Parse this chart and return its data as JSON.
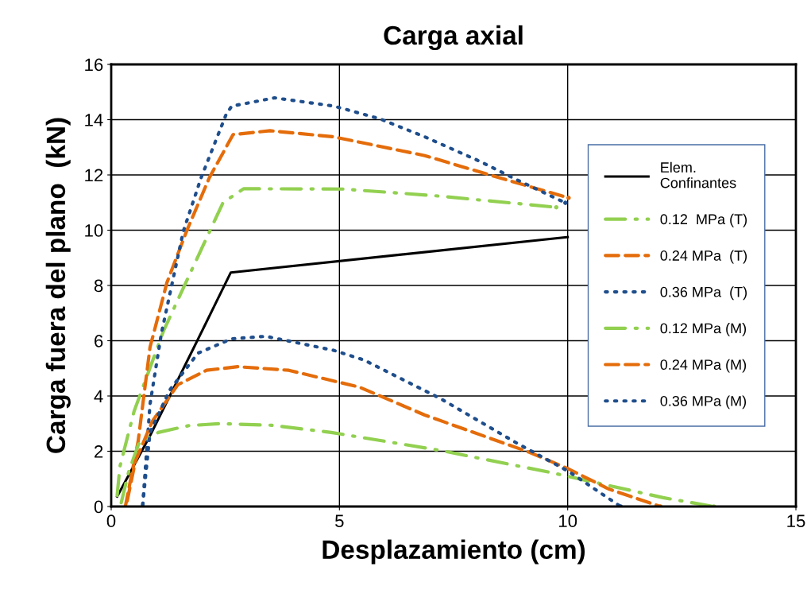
{
  "chart_data": {
    "type": "line",
    "title": "Carga axial",
    "xlabel": "Desplazamiento (cm)",
    "ylabel": "Carga fuera del plano  (kN)",
    "xlim": [
      0,
      15
    ],
    "xticks": [
      0,
      5,
      10,
      15
    ],
    "ylim": [
      0,
      16
    ],
    "yticks": [
      0,
      2,
      4,
      6,
      8,
      10,
      12,
      14,
      16
    ],
    "grid": true,
    "legend": "right",
    "marker": "none",
    "series": [
      {
        "name": "Elem.\nConfinantes",
        "color": "#000000",
        "line_style": "solid",
        "x": [
          0.13,
          0.85,
          1.84,
          2.62,
          10.0
        ],
        "values": [
          0.36,
          2.56,
          5.85,
          8.47,
          9.75
        ]
      },
      {
        "name": "0.12  MPa (T)",
        "color": "#92d050",
        "line_style": "dashdot",
        "x": [
          0.13,
          0.19,
          0.5,
          1.15,
          1.71,
          2.45,
          2.9,
          5.07,
          7.08,
          9.75
        ],
        "values": [
          0.4,
          1.44,
          3.44,
          6.37,
          8.37,
          11.0,
          11.5,
          11.49,
          11.25,
          10.83
        ]
      },
      {
        "name": "0.24 MPa  (T)",
        "color": "#e46c0a",
        "line_style": "dashed",
        "x": [
          0.31,
          0.59,
          0.85,
          1.22,
          1.65,
          2.15,
          2.67,
          3.48,
          4.87,
          6.87,
          8.21,
          10.02
        ],
        "values": [
          0,
          2.36,
          5.76,
          8.1,
          9.96,
          11.9,
          13.46,
          13.6,
          13.38,
          12.7,
          12.04,
          11.17
        ]
      },
      {
        "name": "0.36 MPa  (T)",
        "color": "#1f4e8c",
        "line_style": "dotted",
        "x": [
          0.69,
          0.85,
          1.1,
          1.58,
          1.97,
          2.52,
          2.64,
          3.58,
          4.88,
          5.87,
          6.87,
          8.08,
          8.88,
          9.95
        ],
        "values": [
          0.05,
          3.7,
          6.27,
          9.96,
          11.9,
          14.2,
          14.49,
          14.79,
          14.49,
          14.04,
          13.38,
          12.49,
          11.83,
          10.99
        ]
      },
      {
        "name": "0.12 MPa (M)",
        "color": "#92d050",
        "line_style": "dashdot",
        "x": [
          0.22,
          0.38,
          0.6,
          1.03,
          1.71,
          2.4,
          3.51,
          4.82,
          7.21,
          9.69,
          12.09,
          13.2
        ],
        "values": [
          0.14,
          1.24,
          2.26,
          2.68,
          2.93,
          3.0,
          2.94,
          2.68,
          2.03,
          1.21,
          0.32,
          0
        ]
      },
      {
        "name": "0.24 MPa (M)",
        "color": "#e46c0a",
        "line_style": "dashed",
        "x": [
          0.35,
          0.53,
          0.9,
          1.46,
          2.09,
          2.77,
          3.89,
          5.44,
          6.87,
          9.15,
          10.02,
          10.89,
          12.03
        ],
        "values": [
          0.2,
          1.64,
          3.08,
          4.41,
          4.93,
          5.06,
          4.93,
          4.32,
          3.31,
          1.97,
          1.36,
          0.64,
          0
        ]
      },
      {
        "name": "0.36 MPa (M)",
        "color": "#1f4e8c",
        "line_style": "dotted",
        "x": [
          0.69,
          0.85,
          1.28,
          1.9,
          2.64,
          3.39,
          4.88,
          5.54,
          7.21,
          8.88,
          10.02,
          11.16
        ],
        "values": [
          0.05,
          2.68,
          4.21,
          5.55,
          6.07,
          6.16,
          5.65,
          5.3,
          3.91,
          2.3,
          1.27,
          0
        ]
      }
    ]
  }
}
